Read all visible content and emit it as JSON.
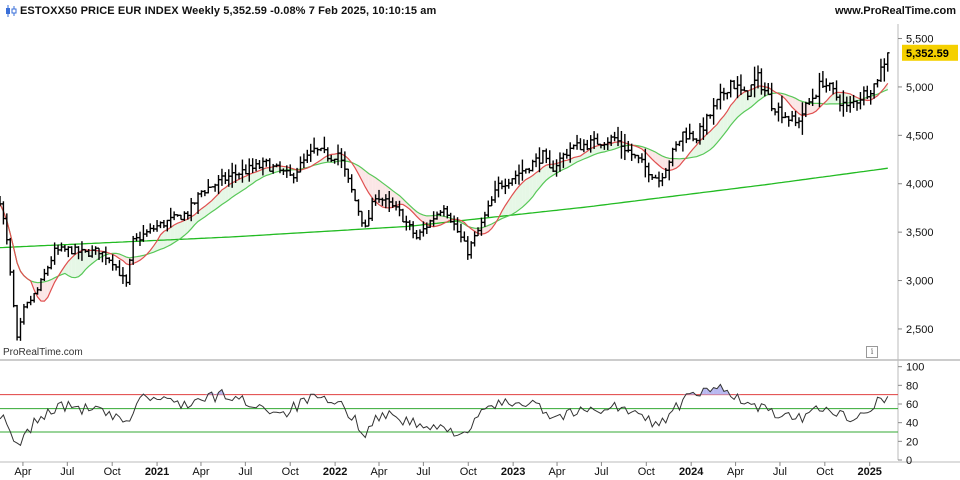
{
  "header": {
    "title": "ESTOXX50 PRICE EUR INDEX Weekly 5,352.59 -0.08% 7 Feb 2025, 10:10:15 am",
    "brand": "www.ProRealTime.com"
  },
  "watermark": "ProRealTime.com",
  "info_icon": "i",
  "icons": {
    "logo": "candlestick-logo-icon",
    "info": "info-icon"
  },
  "colors": {
    "price_bars": "#000000",
    "ma_short": "#e05050",
    "ma_medium": "#58c858",
    "ma_long": "#22bb22",
    "fill_bull": "#e6f7e6",
    "fill_bear": "#fbe6e6",
    "last_price_badge": "#f5d000",
    "rsi_line": "#333333",
    "rsi_overbought": "#e04040",
    "rsi_mid": "#33aa33",
    "rsi_oversold": "#33aa33",
    "rsi_fill": "#b8b8f0"
  },
  "chart_data": [
    {
      "type": "ohlc",
      "panel": "price",
      "timeframe": "Weekly",
      "last_price_label": "5,352.59",
      "y_ticks": [
        2500,
        3000,
        3500,
        4000,
        4500,
        5000,
        5500
      ],
      "y_tick_labels": [
        "2,500",
        "3,000",
        "3,500",
        "4,000",
        "4,500",
        "5,000",
        "5,500"
      ],
      "ylim": [
        2200,
        5650
      ],
      "x_tick_labels": [
        "Apr",
        "Jul",
        "Oct",
        "2021",
        "Apr",
        "Jul",
        "Oct",
        "2022",
        "Apr",
        "Jul",
        "Oct",
        "2023",
        "Apr",
        "Jul",
        "Oct",
        "2024",
        "Apr",
        "Jul",
        "Oct",
        "2025"
      ],
      "x_tick_dates": [
        "2020-04-01",
        "2020-07-01",
        "2020-10-01",
        "2021-01-01",
        "2021-04-01",
        "2021-07-01",
        "2021-10-01",
        "2022-01-01",
        "2022-04-01",
        "2022-07-01",
        "2022-10-01",
        "2023-01-01",
        "2023-04-01",
        "2023-07-01",
        "2023-10-01",
        "2024-01-01",
        "2024-04-01",
        "2024-07-01",
        "2024-10-01",
        "2025-01-01"
      ],
      "xlim": [
        "2020-02-14",
        "2025-02-28"
      ],
      "weekly_close_anchors": [
        [
          "2020-02-14",
          3840
        ],
        [
          "2020-02-28",
          3400
        ],
        [
          "2020-03-20",
          2390
        ],
        [
          "2020-04-03",
          2700
        ],
        [
          "2020-05-01",
          2900
        ],
        [
          "2020-06-05",
          3300
        ],
        [
          "2020-07-03",
          3320
        ],
        [
          "2020-08-07",
          3280
        ],
        [
          "2020-09-04",
          3310
        ],
        [
          "2020-10-02",
          3200
        ],
        [
          "2020-10-30",
          2960
        ],
        [
          "2020-11-13",
          3400
        ],
        [
          "2021-01-01",
          3560
        ],
        [
          "2021-03-05",
          3700
        ],
        [
          "2021-04-02",
          3920
        ],
        [
          "2021-06-04",
          4090
        ],
        [
          "2021-08-13",
          4200
        ],
        [
          "2021-10-01",
          4070
        ],
        [
          "2021-11-19",
          4340
        ],
        [
          "2021-12-24",
          4280
        ],
        [
          "2022-01-07",
          4320
        ],
        [
          "2022-03-04",
          3530
        ],
        [
          "2022-03-25",
          3890
        ],
        [
          "2022-05-13",
          3700
        ],
        [
          "2022-06-17",
          3440
        ],
        [
          "2022-08-12",
          3780
        ],
        [
          "2022-09-30",
          3300
        ],
        [
          "2022-10-28",
          3580
        ],
        [
          "2022-12-02",
          3980
        ],
        [
          "2023-01-27",
          4160
        ],
        [
          "2023-03-03",
          4290
        ],
        [
          "2023-03-17",
          4130
        ],
        [
          "2023-04-28",
          4370
        ],
        [
          "2023-07-28",
          4470
        ],
        [
          "2023-10-27",
          4040
        ],
        [
          "2023-12-15",
          4520
        ],
        [
          "2024-01-12",
          4480
        ],
        [
          "2024-03-22",
          5060
        ],
        [
          "2024-04-19",
          4910
        ],
        [
          "2024-05-17",
          5090
        ],
        [
          "2024-06-14",
          4830
        ],
        [
          "2024-08-02",
          4620
        ],
        [
          "2024-09-27",
          5060
        ],
        [
          "2024-11-15",
          4780
        ],
        [
          "2025-01-10",
          5020
        ],
        [
          "2025-02-07",
          5352.59
        ]
      ],
      "series": [
        {
          "name": "",
          "values_ref": "weekly_close_anchors",
          "kind": "ohlc_bars"
        },
        {
          "name": "",
          "kind": "moving_average",
          "period": 10,
          "color": "#e05050"
        },
        {
          "name": "",
          "kind": "moving_average",
          "period": 20,
          "color": "#58c858"
        },
        {
          "name": "",
          "kind": "moving_average",
          "period": 200,
          "color": "#22bb22",
          "anchors": [
            [
              "2020-02-14",
              3340
            ],
            [
              "2021-06-01",
              3450
            ],
            [
              "2022-06-01",
              3560
            ],
            [
              "2023-06-01",
              3760
            ],
            [
              "2024-06-01",
              3990
            ],
            [
              "2025-02-07",
              4160
            ]
          ]
        }
      ],
      "grid": false
    },
    {
      "type": "line",
      "panel": "indicator",
      "y_ticks": [
        0,
        20,
        40,
        60,
        80,
        100
      ],
      "y_tick_labels": [
        "0",
        "20",
        "40",
        "60",
        "80",
        "100"
      ],
      "ylim": [
        0,
        105
      ],
      "reference_lines": [
        70,
        55,
        30
      ],
      "rsi_anchors": [
        [
          "2020-02-14",
          50
        ],
        [
          "2020-03-20",
          13
        ],
        [
          "2020-04-24",
          40
        ],
        [
          "2020-06-12",
          58
        ],
        [
          "2020-09-04",
          53
        ],
        [
          "2020-10-30",
          38
        ],
        [
          "2020-11-27",
          68
        ],
        [
          "2021-03-05",
          60
        ],
        [
          "2021-05-14",
          70
        ],
        [
          "2021-09-17",
          50
        ],
        [
          "2021-11-12",
          66
        ],
        [
          "2022-01-14",
          58
        ],
        [
          "2022-03-04",
          30
        ],
        [
          "2022-04-08",
          51
        ],
        [
          "2022-07-01",
          35
        ],
        [
          "2022-09-30",
          30
        ],
        [
          "2022-11-11",
          58
        ],
        [
          "2023-02-17",
          64
        ],
        [
          "2023-03-17",
          46
        ],
        [
          "2023-07-28",
          58
        ],
        [
          "2023-10-27",
          38
        ],
        [
          "2023-12-22",
          66
        ],
        [
          "2024-03-08",
          79
        ],
        [
          "2024-04-19",
          60
        ],
        [
          "2024-06-14",
          52
        ],
        [
          "2024-08-02",
          42
        ],
        [
          "2024-09-27",
          58
        ],
        [
          "2024-11-15",
          44
        ],
        [
          "2025-01-03",
          58
        ],
        [
          "2025-02-07",
          68
        ]
      ]
    }
  ]
}
